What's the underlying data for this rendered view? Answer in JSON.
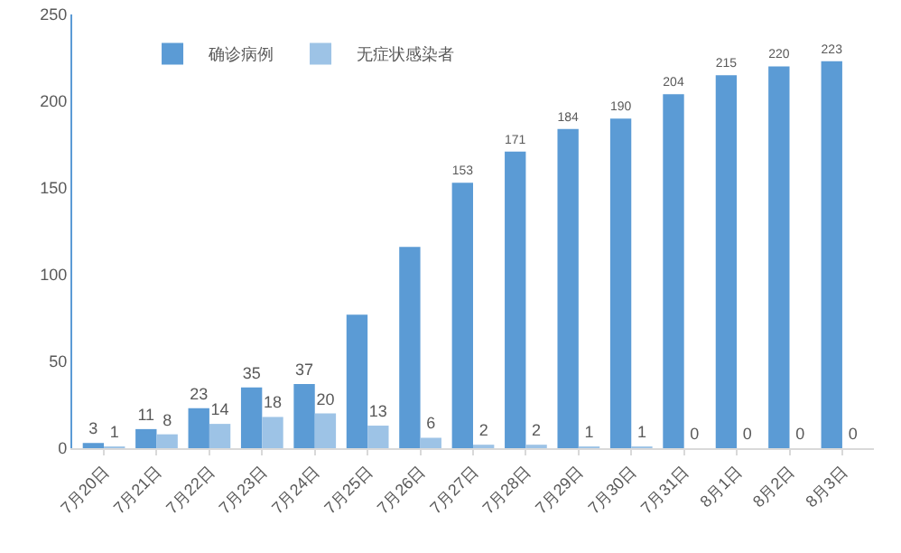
{
  "chart_data": {
    "type": "bar",
    "categories": [
      "7月20日",
      "7月21日",
      "7月22日",
      "7月23日",
      "7月24日",
      "7月25日",
      "7月26日",
      "7月27日",
      "7月28日",
      "7月29日",
      "7月30日",
      "7月31日",
      "8月1日",
      "8月2日",
      "8月3日"
    ],
    "series": [
      {
        "name": "确诊病例",
        "color": "#5b9bd5",
        "values": [
          3,
          11,
          23,
          35,
          37,
          77,
          116,
          153,
          171,
          184,
          190,
          204,
          215,
          220,
          223
        ],
        "value_labels": [
          "3",
          "11",
          "23",
          "35",
          "37",
          null,
          null,
          "153",
          "171",
          "184",
          "190",
          "204",
          "215",
          "220",
          "223"
        ]
      },
      {
        "name": "无症状感染者",
        "color": "#9dc3e6",
        "values": [
          1,
          8,
          14,
          18,
          20,
          13,
          6,
          2,
          2,
          1,
          1,
          0,
          0,
          0,
          0
        ],
        "value_labels": [
          "1",
          "8",
          "14",
          "18",
          "20",
          "13",
          "6",
          "2",
          "2",
          "1",
          "1",
          "0",
          "0",
          "0",
          "0"
        ]
      }
    ],
    "ylim": [
      0,
      250
    ],
    "yticks": [
      0,
      50,
      100,
      150,
      200,
      250
    ],
    "grid": false,
    "legend": "top left"
  }
}
